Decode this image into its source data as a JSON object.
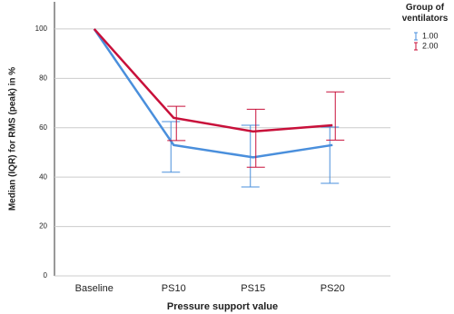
{
  "chart_data": {
    "type": "line",
    "x_label": "Pressure support value",
    "y_label": "Median (IQR) for RMS (peak) in %",
    "legend_title": "Group of ventilators",
    "categories": [
      "Baseline",
      "PS10",
      "PS15",
      "PS20"
    ],
    "series": [
      {
        "name": "1.00",
        "color": "#4a8fdc",
        "values": [
          100,
          53,
          48,
          53
        ],
        "lower": [
          null,
          42,
          36,
          37.5
        ],
        "upper": [
          null,
          62.5,
          61,
          60.3
        ]
      },
      {
        "name": "2.00",
        "color": "#c8103a",
        "values": [
          100,
          64,
          58.5,
          61
        ],
        "lower": [
          null,
          54.8,
          44,
          55
        ],
        "upper": [
          null,
          68.7,
          67.5,
          74.5
        ]
      }
    ],
    "ylim": [
      0,
      111
    ],
    "yticks": [
      0,
      20,
      40,
      60,
      80,
      100
    ],
    "grid": true,
    "legend": "top-right"
  }
}
